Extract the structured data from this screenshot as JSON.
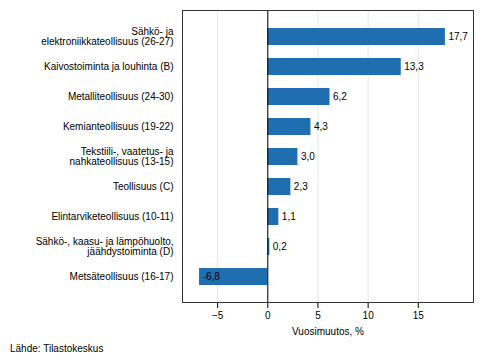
{
  "chart_data": {
    "type": "bar",
    "orientation": "horizontal",
    "categories": [
      "Metsäteollisuus (16-17)",
      "Sähkö-, kaasu- ja lämpöhuolto,\njäähdystoiminta (D)",
      "Elintarviketeollisuus (10-11)",
      "Teollisuus (C)",
      "Tekstiili-, vaatetus- ja\nnahkateollisuus (13-15)",
      "Kemianteollisuus (19-22)",
      "Metalliteollisuus (24-30)",
      "Kaivostoiminta ja louhinta (B)",
      "Sähkö- ja\nelektroniikkateollisuus (26-27)"
    ],
    "values": [
      -6.8,
      0.2,
      1.1,
      2.3,
      3.0,
      4.3,
      6.2,
      13.3,
      17.7
    ],
    "value_labels": [
      "-6,8",
      "0,2",
      "1,1",
      "2,3",
      "3,0",
      "4,3",
      "6,2",
      "13,3",
      "17,7"
    ],
    "data_labels": true,
    "color": "#1F6FB0",
    "xlabel": "Vuosimuutos, %",
    "xlim": [
      -8.5,
      20.5
    ],
    "xticks": [
      -5,
      0,
      5,
      10,
      15
    ],
    "grid": true,
    "annotations": [
      "Lähde: Tilastokeskus"
    ]
  }
}
